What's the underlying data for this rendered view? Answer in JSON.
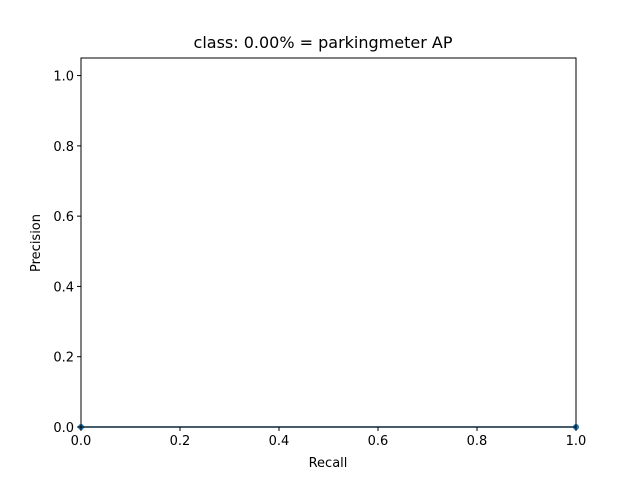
{
  "chart_data": {
    "type": "line",
    "title": "class: 0.00% = parkingmeter AP",
    "xlabel": "Recall",
    "ylabel": "Precision",
    "xlim": [
      0.0,
      1.0
    ],
    "ylim": [
      0.0,
      1.05
    ],
    "x_ticks": [
      "0.0",
      "0.2",
      "0.4",
      "0.6",
      "0.8",
      "1.0"
    ],
    "y_ticks": [
      "0.0",
      "0.2",
      "0.4",
      "0.6",
      "0.8",
      "1.0"
    ],
    "grid": false,
    "series": [
      {
        "x": [
          0.0,
          1.0
        ],
        "y": [
          0.0,
          0.0
        ],
        "color": "#1f77b4",
        "marker": "dot",
        "fill": "area"
      }
    ]
  }
}
